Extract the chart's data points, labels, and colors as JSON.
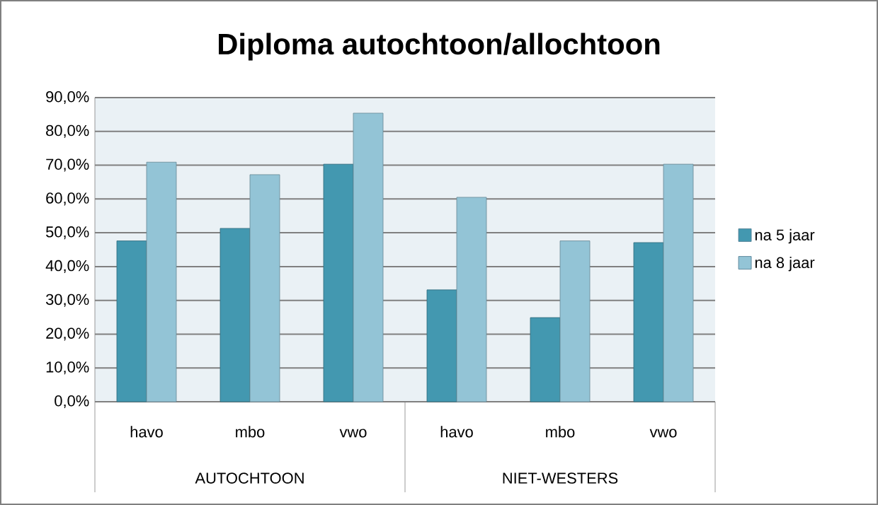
{
  "chart_data": {
    "type": "bar",
    "title": "Diploma autochtoon/allochtoon",
    "categories": [
      "havo",
      "mbo",
      "vwo",
      "havo",
      "mbo",
      "vwo"
    ],
    "series": [
      {
        "name": "na 5 jaar",
        "color": "#4398b0",
        "values": [
          47.6,
          51.3,
          70.3,
          33.1,
          24.9,
          47.1
        ]
      },
      {
        "name": "na 8 jaar",
        "color": "#93c4d6",
        "values": [
          70.9,
          67.2,
          85.4,
          60.5,
          47.6,
          70.3
        ]
      }
    ],
    "annotations": [
      "AUTOCHTOON",
      "NIET-WESTERS"
    ],
    "ylim": [
      0,
      90
    ],
    "yticks": [
      {
        "value": 0,
        "label": "0,0%"
      },
      {
        "value": 10,
        "label": "10,0%"
      },
      {
        "value": 20,
        "label": "20,0%"
      },
      {
        "value": 30,
        "label": "30,0%"
      },
      {
        "value": 40,
        "label": "40,0%"
      },
      {
        "value": 50,
        "label": "50,0%"
      },
      {
        "value": 60,
        "label": "60,0%"
      },
      {
        "value": 70,
        "label": "70,0%"
      },
      {
        "value": 80,
        "label": "80,0%"
      },
      {
        "value": 90,
        "label": "90,0%"
      }
    ],
    "grid": "y",
    "legend": "right"
  }
}
